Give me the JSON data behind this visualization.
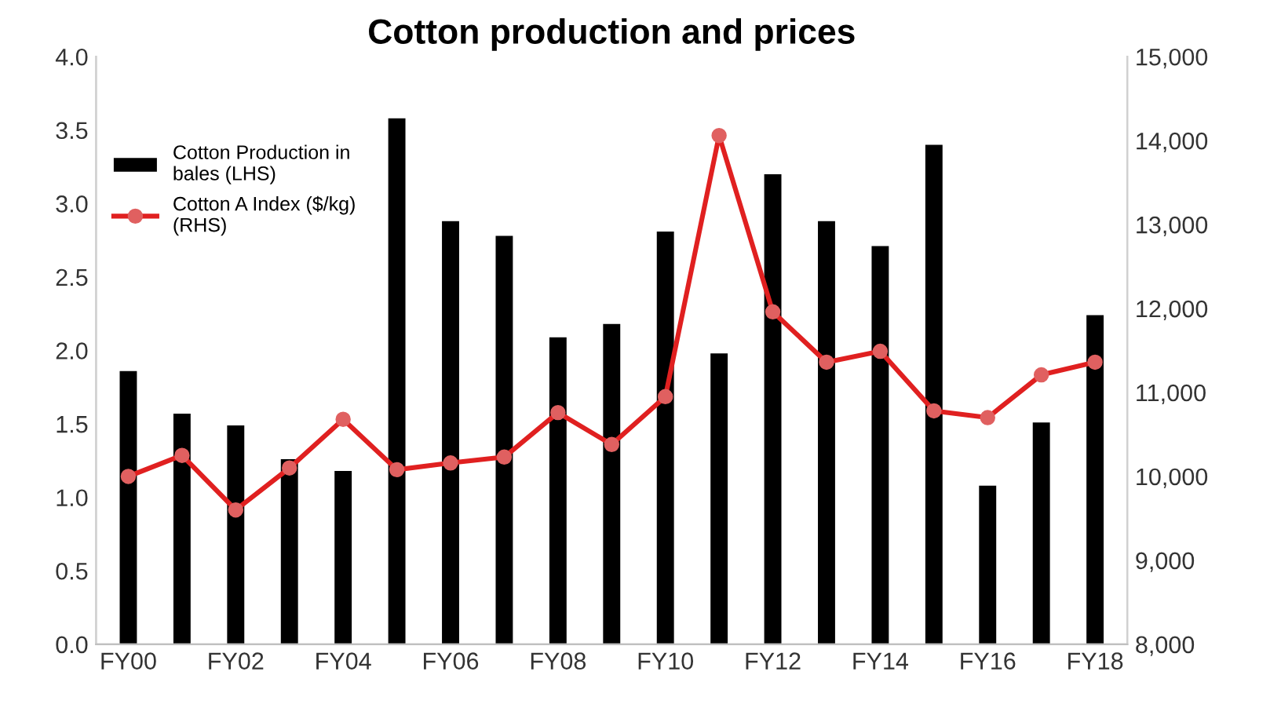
{
  "chart_data": {
    "type": "bar",
    "title": "Cotton production and prices",
    "categories": [
      "FY00",
      null,
      "FY02",
      null,
      "FY04",
      null,
      "FY06",
      null,
      "FY08",
      null,
      "FY10",
      null,
      "FY12",
      null,
      "FY14",
      null,
      "FY16",
      null,
      "FY18"
    ],
    "series": [
      {
        "name": "Cotton Production in bales (LHS)",
        "color": "#000000",
        "values": [
          1.86,
          1.57,
          1.49,
          1.26,
          1.18,
          3.58,
          2.88,
          2.78,
          2.09,
          2.18,
          2.81,
          1.98,
          3.2,
          2.88,
          2.71,
          3.4,
          1.08,
          1.51,
          2.24
        ]
      },
      {
        "name": "Cotton A Index ($/kg) (RHS)",
        "type": "line",
        "axis": "y2",
        "color": "#e02020",
        "marker": "circle",
        "values": [
          10000,
          10250,
          9600,
          10100,
          10680,
          10080,
          10160,
          10230,
          10760,
          10380,
          10950,
          14060,
          11960,
          11360,
          11490,
          10780,
          10700,
          11210,
          11360
        ]
      }
    ],
    "ylim": [
      0,
      4
    ],
    "yticks": [
      {
        "value": 0,
        "label": "0.0"
      },
      0.5,
      {
        "value": 1,
        "label": "1.0"
      },
      1.5,
      {
        "value": 2,
        "label": "2.0"
      },
      2.5,
      {
        "value": 3,
        "label": "3.0"
      },
      3.5,
      {
        "value": 4,
        "label": "4.0"
      }
    ],
    "y2lim": [
      8000,
      15000
    ],
    "y2ticks": [
      {
        "value": 8000,
        "label": "8,000"
      },
      {
        "value": 9000,
        "label": "9,000"
      },
      {
        "value": 10000,
        "label": "10,000"
      },
      {
        "value": 11000,
        "label": "11,000"
      },
      {
        "value": 12000,
        "label": "12,000"
      },
      {
        "value": 13000,
        "label": "13,000"
      },
      {
        "value": 14000,
        "label": "14,000"
      },
      {
        "value": 15000,
        "label": "15,000"
      }
    ],
    "legend": "top left",
    "grid": false
  }
}
